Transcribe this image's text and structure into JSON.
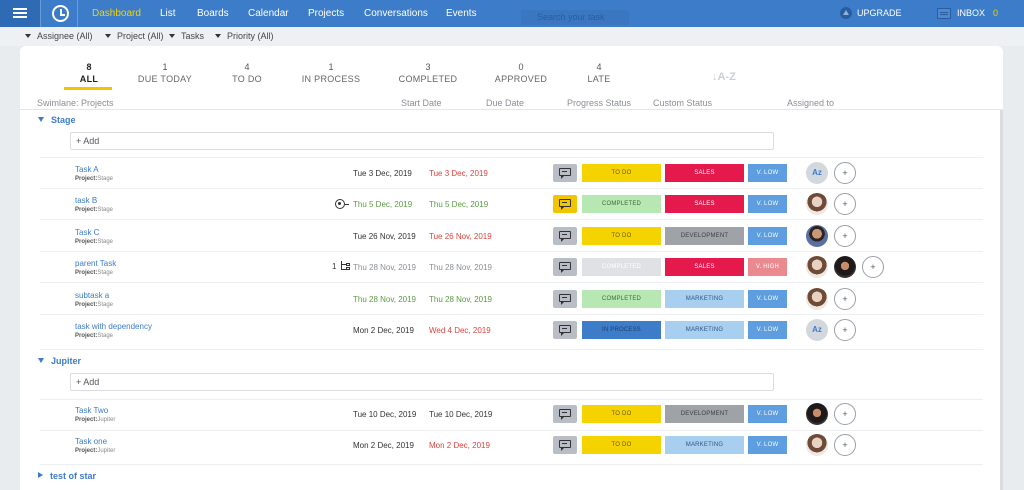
{
  "nav": {
    "items": [
      "Dashboard",
      "List",
      "Boards",
      "Calendar",
      "Projects",
      "Conversations",
      "Events"
    ],
    "search_placeholder": "Search your task",
    "upgrade_label": "UPGRADE",
    "inbox_label": "INBOX",
    "inbox_count": "0"
  },
  "filters": [
    "Assignee (All)",
    "Project (All)",
    "Tasks",
    "Priority (All)"
  ],
  "stats": [
    {
      "count": "8",
      "label": "ALL"
    },
    {
      "count": "1",
      "label": "DUE TODAY"
    },
    {
      "count": "4",
      "label": "TO DO"
    },
    {
      "count": "1",
      "label": "IN PROCESS"
    },
    {
      "count": "3",
      "label": "COMPLETED"
    },
    {
      "count": "0",
      "label": "APPROVED"
    },
    {
      "count": "4",
      "label": "LATE"
    }
  ],
  "sort_label": "↓A-Z",
  "columns": {
    "swimlane": "Swimlane: Projects",
    "start": "Start Date",
    "due": "Due Date",
    "progress": "Progress Status",
    "custom": "Custom Status",
    "assigned": "Assigned to"
  },
  "add_label": "+ Add",
  "project_label": "Project:",
  "groups": [
    {
      "name": "Stage"
    },
    {
      "name": "Jupiter"
    },
    {
      "name": "test of star"
    }
  ],
  "tasks": [
    {
      "name": "Task A",
      "project": "Stage",
      "start": "Tue 3 Dec, 2019",
      "due": "Tue 3 Dec, 2019",
      "progress": "TO DO",
      "custom": "SALES",
      "priority": "V. LOW",
      "assignee_initials": "Az"
    },
    {
      "name": "task B",
      "project": "Stage",
      "start": "Thu 5 Dec, 2019",
      "due": "Thu 5 Dec, 2019",
      "progress": "COMPLETED",
      "custom": "SALES",
      "priority": "V. LOW"
    },
    {
      "name": "Task C",
      "project": "Stage",
      "start": "Tue 26 Nov, 2019",
      "due": "Tue 26 Nov, 2019",
      "progress": "TO DO",
      "custom": "DEVELOPMENT",
      "priority": "V. LOW"
    },
    {
      "name": "parent Task",
      "project": "Stage",
      "start": "Thu 28 Nov, 2019",
      "due": "Thu 28 Nov, 2019",
      "progress": "COMPLETED",
      "custom": "SALES",
      "priority": "V. HIGH",
      "subtask_count": "1"
    },
    {
      "name": "subtask a",
      "project": "Stage",
      "start": "Thu 28 Nov, 2019",
      "due": "Thu 28 Nov, 2019",
      "progress": "COMPLETED",
      "custom": "MARKETING",
      "priority": "V. LOW"
    },
    {
      "name": "task with dependency",
      "project": "Stage",
      "start": "Mon 2 Dec, 2019",
      "due": "Wed 4 Dec, 2019",
      "progress": "IN PROCESS",
      "custom": "MARKETING",
      "priority": "V. LOW",
      "assignee_initials": "Az"
    },
    {
      "name": "Task Two",
      "project": "Jupiter",
      "start": "Tue 10 Dec, 2019",
      "due": "Tue 10 Dec, 2019",
      "progress": "TO DO",
      "custom": "DEVELOPMENT",
      "priority": "V. LOW"
    },
    {
      "name": "Task one",
      "project": "Jupiter",
      "start": "Mon 2 Dec, 2019",
      "due": "Mon 2 Dec, 2019",
      "progress": "TO DO",
      "custom": "MARKETING",
      "priority": "V. LOW"
    }
  ],
  "add_assignee_label": "+",
  "colors": {
    "nav_bg": "#3d7cc9",
    "accent_yellow": "#f5d300",
    "sales": "#e5194c",
    "priority_low": "#5d9de0"
  }
}
